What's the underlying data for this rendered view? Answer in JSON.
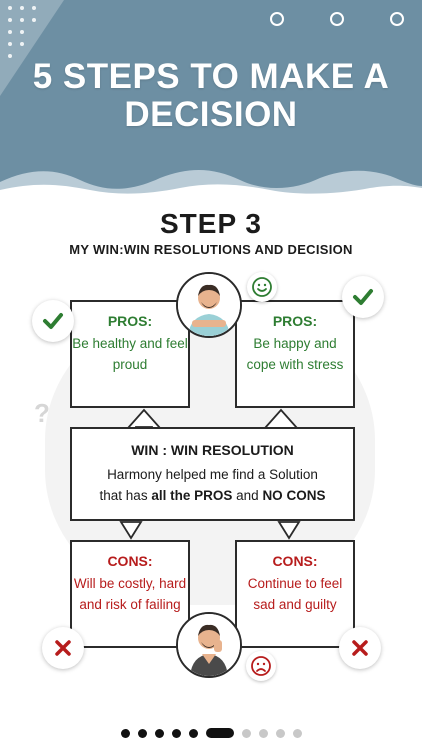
{
  "header": {
    "title": "5 STEPS TO MAKE A DECISION",
    "bg_color": "#6d8fa3"
  },
  "step": {
    "title": "STEP 3",
    "subtitle": "MY WIN:WIN RESOLUTIONS AND DECISION"
  },
  "pros_left": {
    "head": "PROS:",
    "body": "Be healthy and feel proud"
  },
  "pros_right": {
    "head": "PROS:",
    "body": "Be happy and cope with stress"
  },
  "win": {
    "head": "WIN : WIN RESOLUTION",
    "line1": "Harmony helped me find a Solution",
    "line2_prefix": "that has",
    "line2_bold1": "all the PROS",
    "line2_mid": "and",
    "line2_bold2": "NO CONS"
  },
  "cons_left": {
    "head": "CONS:",
    "body": "Will be costly, hard and risk of failing"
  },
  "cons_right": {
    "head": "CONS:",
    "body": "Continue to feel sad and guilty"
  },
  "colors": {
    "pros": "#2e7d32",
    "cons": "#b71c1c",
    "accent": "#6d8fa3"
  },
  "icons": [
    "check-icon",
    "cross-icon",
    "smile-emoji-icon",
    "sad-emoji-icon",
    "person-avatar"
  ],
  "pagination": {
    "total": 10,
    "active_index": 5
  }
}
